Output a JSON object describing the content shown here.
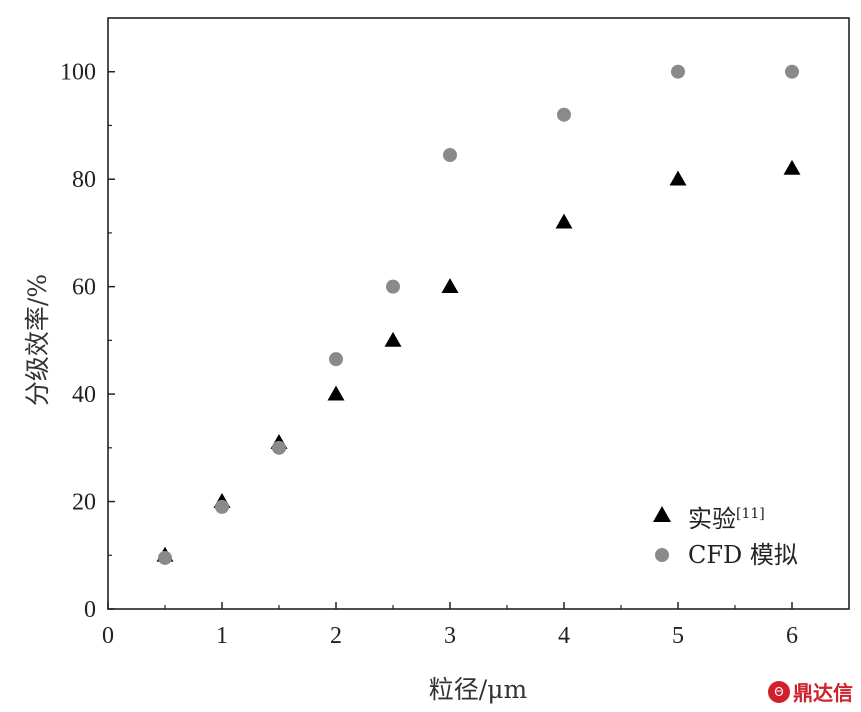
{
  "chart_data": {
    "type": "scatter",
    "xlabel": "粒径/μm",
    "ylabel": "分级效率/%",
    "xlim": [
      0,
      6.5
    ],
    "ylim": [
      0,
      110
    ],
    "xticks": [
      0,
      1,
      2,
      3,
      4,
      5,
      6
    ],
    "yticks": [
      0,
      20,
      40,
      60,
      80,
      100
    ],
    "grid": false,
    "legend_position": "bottom-right",
    "series": [
      {
        "name": "实验",
        "name_sup": "[11]",
        "marker": "triangle",
        "color": "#000000",
        "x": [
          0.5,
          1,
          1.5,
          2,
          2.5,
          3,
          4,
          5,
          6
        ],
        "y": [
          10,
          20,
          31,
          40,
          50,
          60,
          72,
          80,
          82
        ]
      },
      {
        "name": "CFD 模拟",
        "marker": "circle",
        "color": "#8a8a8a",
        "x": [
          0.5,
          1,
          1.5,
          2,
          2.5,
          3,
          4,
          5,
          6
        ],
        "y": [
          9.5,
          19,
          30,
          46.5,
          60,
          84.5,
          92,
          100,
          100
        ]
      }
    ]
  },
  "watermark": {
    "logo_text": "Θ",
    "text": "鼎达信"
  }
}
